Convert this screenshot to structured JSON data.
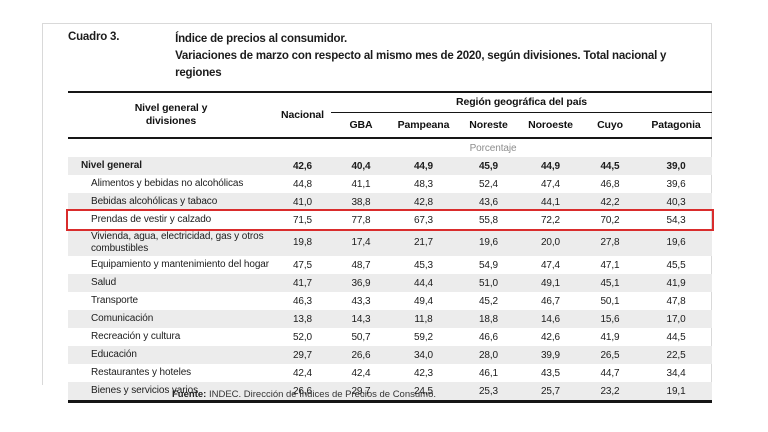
{
  "page": {
    "label": "Cuadro 3.",
    "title_line1": "Índice de precios al consumidor.",
    "title_line2": "Variaciones de marzo con respecto al mismo mes de 2020, según divisiones. Total nacional y regiones"
  },
  "table": {
    "header": {
      "col1_line1": "Nivel general y",
      "col1_line2": "divisiones",
      "col2": "Nacional",
      "region_group": "Región geográfica del país",
      "regions": [
        "GBA",
        "Pampeana",
        "Noreste",
        "Noroeste",
        "Cuyo",
        "Patagonia"
      ]
    },
    "unit_label": "Porcentaje",
    "rows": [
      {
        "label": "Nivel general",
        "bold": true,
        "values": [
          "42,6",
          "40,4",
          "44,9",
          "45,9",
          "44,9",
          "44,5",
          "39,0"
        ]
      },
      {
        "label": "Alimentos y bebidas no alcohólicas",
        "values": [
          "44,8",
          "41,1",
          "48,3",
          "52,4",
          "47,4",
          "46,8",
          "39,6"
        ]
      },
      {
        "label": "Bebidas alcohólicas y tabaco",
        "values": [
          "41,0",
          "38,8",
          "42,8",
          "43,6",
          "44,1",
          "42,2",
          "40,3"
        ]
      },
      {
        "label": "Prendas de vestir y calzado",
        "highlighted": true,
        "values": [
          "71,5",
          "77,8",
          "67,3",
          "55,8",
          "72,2",
          "70,2",
          "54,3"
        ]
      },
      {
        "label": "Vivienda, agua, electricidad, gas y otros combustibles",
        "tall": true,
        "values": [
          "19,8",
          "17,4",
          "21,7",
          "19,6",
          "20,0",
          "27,8",
          "19,6"
        ]
      },
      {
        "label": "Equipamiento y mantenimiento del hogar",
        "values": [
          "47,5",
          "48,7",
          "45,3",
          "54,9",
          "47,4",
          "47,1",
          "45,5"
        ]
      },
      {
        "label": "Salud",
        "values": [
          "41,7",
          "36,9",
          "44,4",
          "51,0",
          "49,1",
          "45,1",
          "41,9"
        ]
      },
      {
        "label": "Transporte",
        "values": [
          "46,3",
          "43,3",
          "49,4",
          "45,2",
          "46,7",
          "50,1",
          "47,8"
        ]
      },
      {
        "label": "Comunicación",
        "values": [
          "13,8",
          "14,3",
          "11,8",
          "18,8",
          "14,6",
          "15,6",
          "17,0"
        ]
      },
      {
        "label": "Recreación y cultura",
        "values": [
          "52,0",
          "50,7",
          "59,2",
          "46,6",
          "42,6",
          "41,9",
          "44,5"
        ]
      },
      {
        "label": "Educación",
        "values": [
          "29,7",
          "26,6",
          "34,0",
          "28,0",
          "39,9",
          "26,5",
          "22,5"
        ]
      },
      {
        "label": "Restaurantes y hoteles",
        "values": [
          "42,4",
          "42,4",
          "42,3",
          "46,1",
          "43,5",
          "44,7",
          "34,4"
        ]
      },
      {
        "label": "Bienes y servicios varios",
        "values": [
          "26,6",
          "29,7",
          "24,5",
          "25,3",
          "25,7",
          "23,2",
          "19,1"
        ]
      }
    ]
  },
  "footer": {
    "source_label": "Fuente:",
    "source_text": " INDEC. Dirección de Índices de Precios de Consumo."
  },
  "colors": {
    "highlight_box": "#d92c2c",
    "stripe": "#ececec",
    "rule": "#161616",
    "muted_text": "#8d8d8d"
  }
}
